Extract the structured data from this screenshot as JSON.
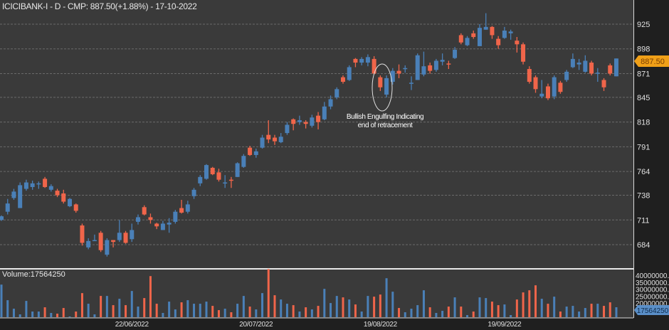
{
  "header": {
    "title": "ICICIBANK-I - D - CMP: 887.50(+1.88%) - 17-10-2022"
  },
  "volume_pane": {
    "label": "Volume:17564250",
    "current_tag": "17564250",
    "axis_labels": [
      "40000000.00",
      "35000000.00",
      "30000000.00",
      "25000000.00",
      "20000000.00"
    ]
  },
  "price_tag": "887.50",
  "annotation": {
    "line1": "Bullish Engulfing Indicating",
    "line2": "end of retracement"
  },
  "colors": {
    "up": "#4a80b8",
    "down": "#f0654a",
    "background": "#3a3a3a",
    "axis_bg": "#1f1f1f",
    "price_tag": "#f0a018"
  },
  "chart_data": {
    "type": "candlestick",
    "symbol": "ICICIBANK-I",
    "interval": "D",
    "y_ticks": [
      925,
      898,
      871,
      845,
      818,
      791,
      764,
      738,
      711,
      684
    ],
    "ylim": [
      664,
      945
    ],
    "grid": true,
    "x_tick_labels": [
      {
        "candle": 21,
        "label": "22/06/2022"
      },
      {
        "candle": 41,
        "label": "20/07/2022"
      },
      {
        "candle": 61,
        "label": "19/08/2022"
      },
      {
        "candle": 81,
        "label": "19/09/2022"
      }
    ],
    "ohlc": [
      [
        711,
        716,
        710,
        715
      ],
      [
        720,
        734,
        717,
        729
      ],
      [
        735,
        745,
        733,
        742
      ],
      [
        724,
        752,
        724,
        749
      ],
      [
        745,
        755,
        743,
        752
      ],
      [
        747,
        754,
        744,
        751
      ],
      [
        750,
        753,
        745,
        751
      ],
      [
        756,
        758,
        746,
        747
      ],
      [
        744,
        750,
        742,
        748
      ],
      [
        743,
        745,
        736,
        738
      ],
      [
        740,
        744,
        729,
        731
      ],
      [
        726,
        735,
        725,
        734
      ],
      [
        728,
        729,
        719,
        721
      ],
      [
        705,
        707,
        683,
        686
      ],
      [
        681,
        691,
        679,
        688
      ],
      [
        688,
        695,
        688,
        689
      ],
      [
        697,
        699,
        676,
        678
      ],
      [
        673,
        691,
        671,
        689
      ],
      [
        689,
        689,
        681,
        687
      ],
      [
        689,
        711,
        687,
        697
      ],
      [
        697,
        699,
        685,
        686
      ],
      [
        690,
        707,
        687,
        700
      ],
      [
        709,
        717,
        706,
        714
      ],
      [
        725,
        727,
        716,
        717
      ],
      [
        714,
        718,
        707,
        711
      ],
      [
        707,
        708,
        701,
        704
      ],
      [
        700,
        710,
        700,
        707
      ],
      [
        706,
        713,
        697,
        708
      ],
      [
        709,
        722,
        707,
        720
      ],
      [
        724,
        733,
        718,
        719
      ],
      [
        720,
        732,
        718,
        728
      ],
      [
        737,
        746,
        734,
        744
      ],
      [
        751,
        760,
        748,
        758
      ],
      [
        756,
        772,
        755,
        771
      ],
      [
        768,
        769,
        760,
        761
      ],
      [
        763,
        767,
        753,
        755
      ],
      [
        751,
        760,
        746,
        752
      ],
      [
        755,
        758,
        746,
        754
      ],
      [
        758,
        774,
        758,
        773
      ],
      [
        769,
        783,
        768,
        781
      ],
      [
        790,
        792,
        781,
        782
      ],
      [
        782,
        789,
        779,
        786
      ],
      [
        790,
        804,
        789,
        801
      ],
      [
        804,
        820,
        795,
        799
      ],
      [
        801,
        804,
        793,
        797
      ],
      [
        796,
        806,
        795,
        802
      ],
      [
        806,
        818,
        804,
        815
      ],
      [
        821,
        822,
        809,
        816
      ],
      [
        818,
        825,
        815,
        820
      ],
      [
        818,
        820,
        811,
        816
      ],
      [
        814,
        826,
        812,
        823
      ],
      [
        825,
        829,
        810,
        818
      ],
      [
        821,
        840,
        820,
        835
      ],
      [
        835,
        847,
        832,
        843
      ],
      [
        845,
        856,
        843,
        854
      ],
      [
        867,
        869,
        860,
        862
      ],
      [
        864,
        880,
        863,
        878
      ],
      [
        887,
        888,
        878,
        883
      ],
      [
        883,
        889,
        880,
        887
      ],
      [
        883,
        892,
        879,
        889
      ],
      [
        887,
        890,
        870,
        871
      ],
      [
        867,
        869,
        852,
        856
      ],
      [
        848,
        869,
        845,
        866
      ],
      [
        862,
        877,
        859,
        874
      ],
      [
        874,
        881,
        866,
        871
      ],
      [
        876,
        880,
        872,
        877
      ],
      [
        860,
        868,
        853,
        861
      ],
      [
        864,
        893,
        864,
        891
      ],
      [
        870,
        895,
        868,
        879
      ],
      [
        880,
        883,
        871,
        874
      ],
      [
        875,
        887,
        873,
        885
      ],
      [
        884,
        893,
        880,
        886
      ],
      [
        882,
        885,
        876,
        881
      ],
      [
        888,
        900,
        887,
        897
      ],
      [
        913,
        915,
        903,
        905
      ],
      [
        902,
        912,
        901,
        910
      ],
      [
        915,
        918,
        909,
        911
      ],
      [
        901,
        925,
        901,
        921
      ],
      [
        919,
        937,
        919,
        922
      ],
      [
        922,
        923,
        909,
        913
      ],
      [
        909,
        912,
        898,
        902
      ],
      [
        910,
        922,
        909,
        918
      ],
      [
        915,
        919,
        908,
        917
      ],
      [
        907,
        911,
        894,
        903
      ],
      [
        903,
        905,
        881,
        884
      ],
      [
        876,
        879,
        860,
        862
      ],
      [
        867,
        869,
        850,
        854
      ],
      [
        846,
        864,
        844,
        849
      ],
      [
        857,
        860,
        842,
        844
      ],
      [
        846,
        869,
        843,
        867
      ],
      [
        861,
        863,
        849,
        851
      ],
      [
        864,
        875,
        862,
        873
      ],
      [
        878,
        893,
        877,
        887
      ],
      [
        881,
        887,
        875,
        883
      ],
      [
        873,
        891,
        872,
        885
      ],
      [
        883,
        885,
        869,
        871
      ],
      [
        871,
        877,
        862,
        872
      ],
      [
        864,
        866,
        852,
        856
      ],
      [
        880,
        882,
        869,
        871
      ],
      [
        868,
        887.5,
        868,
        887.5
      ]
    ],
    "volume": [
      57500000,
      30000000,
      15000000,
      5000000,
      28750000,
      10000000,
      10000000,
      17500000,
      7500000,
      6250000,
      16250000,
      1250000,
      10000000,
      42500000,
      23750000,
      5000000,
      37500000,
      37500000,
      21250000,
      32500000,
      21250000,
      46250000,
      18750000,
      33750000,
      72500000,
      23750000,
      7500000,
      27500000,
      13750000,
      26250000,
      30000000,
      23750000,
      23750000,
      27500000,
      20000000,
      12500000,
      15000000,
      8750000,
      23750000,
      37500000,
      18750000,
      13750000,
      42500000,
      85000000,
      38750000,
      31250000,
      23750000,
      21250000,
      10000000,
      17500000,
      13750000,
      20000000,
      50000000,
      25000000,
      37500000,
      35000000,
      31250000,
      22500000,
      10000000,
      37500000,
      36250000,
      40000000,
      68750000,
      45000000,
      16250000,
      8750000,
      15000000,
      21250000,
      47500000,
      17500000,
      7500000,
      11250000,
      18750000,
      35000000,
      18750000,
      3750000,
      10000000,
      35000000,
      33750000,
      27500000,
      21250000,
      22500000,
      3750000,
      31250000,
      43750000,
      47500000,
      56250000,
      32500000,
      23750000,
      36250000,
      10000000,
      18750000,
      20000000,
      10000000,
      16250000,
      23750000,
      23750000,
      20000000,
      26250000,
      17564250
    ]
  }
}
